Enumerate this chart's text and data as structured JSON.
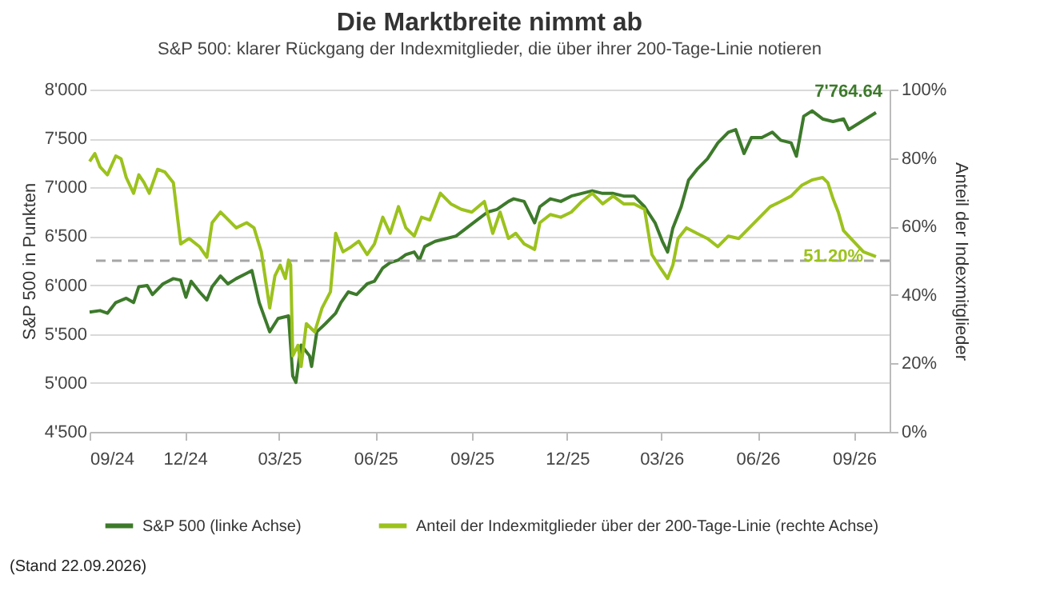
{
  "chart_data": {
    "type": "line",
    "title": "Die Marktbreite nimmt ab",
    "subtitle": "S&P 500: klarer Rückgang der Indexmitglieder, die über ihrer 200-Tage-Linie notieren",
    "ylabel": "S&P 500 in Punkten",
    "y2label": "Anteil der Indexmitglieder",
    "annotations": [
      {
        "text": "7'764.64",
        "x": "2026-09-22",
        "y": 7764.64
      },
      "51.20%",
      "(Stand 22.09.2026)"
    ],
    "series": [
      {
        "name": "S&P 500 (linke Achse)",
        "color": "#3d7a2b",
        "axis": "y",
        "x": [
          "2024-09-01",
          "2024-09-11",
          "2024-09-18",
          "2024-09-26",
          "2024-10-06",
          "2024-10-13",
          "2024-10-18",
          "2024-10-26",
          "2024-10-31",
          "2024-11-10",
          "2024-11-20",
          "2024-11-27",
          "2024-12-02",
          "2024-12-07",
          "2024-12-15",
          "2024-12-22",
          "2024-12-27",
          "2025-01-04",
          "2025-01-11",
          "2025-01-19",
          "2025-01-29",
          "2025-02-03",
          "2025-02-10",
          "2025-02-20",
          "2025-02-28",
          "2025-03-10",
          "2025-03-14",
          "2025-03-17",
          "2025-03-22",
          "2025-03-30",
          "2025-04-01",
          "2025-04-06",
          "2025-04-14",
          "2025-04-24",
          "2025-04-29",
          "2025-05-06",
          "2025-05-14",
          "2025-05-24",
          "2025-05-31",
          "2025-06-08",
          "2025-06-15",
          "2025-06-23",
          "2025-06-30",
          "2025-07-08",
          "2025-07-13",
          "2025-07-18",
          "2025-07-28",
          "2025-08-07",
          "2025-08-17",
          "2025-08-27",
          "2025-09-06",
          "2025-09-16",
          "2025-09-25",
          "2025-10-06",
          "2025-10-11",
          "2025-10-21",
          "2025-10-31",
          "2025-11-05",
          "2025-11-15",
          "2025-11-25",
          "2025-12-05",
          "2025-12-15",
          "2025-12-25",
          "2026-01-04",
          "2026-01-14",
          "2026-01-24",
          "2026-02-03",
          "2026-02-13",
          "2026-02-23",
          "2026-03-02",
          "2026-03-07",
          "2026-03-12",
          "2026-03-20",
          "2026-03-27",
          "2026-04-04",
          "2026-04-14",
          "2026-04-24",
          "2026-05-04",
          "2026-05-11",
          "2026-05-19",
          "2026-05-26",
          "2026-06-05",
          "2026-06-15",
          "2026-06-23",
          "2026-07-03",
          "2026-07-08",
          "2026-07-15",
          "2026-07-23",
          "2026-08-02",
          "2026-08-12",
          "2026-08-22",
          "2026-08-27",
          "2026-09-22"
        ],
        "values": [
          5725,
          5740,
          5713,
          5822,
          5866,
          5822,
          5985,
          5996,
          5904,
          6013,
          6067,
          6051,
          5876,
          6040,
          5931,
          5849,
          5985,
          6094,
          6013,
          6067,
          6121,
          6149,
          5822,
          5523,
          5659,
          5686,
          5071,
          5006,
          5387,
          5278,
          5169,
          5523,
          5604,
          5713,
          5822,
          5931,
          5904,
          6013,
          6040,
          6176,
          6230,
          6257,
          6312,
          6339,
          6257,
          6394,
          6448,
          6475,
          6502,
          6584,
          6666,
          6747,
          6775,
          6856,
          6883,
          6856,
          6638,
          6802,
          6883,
          6856,
          6911,
          6938,
          6965,
          6938,
          6938,
          6911,
          6911,
          6802,
          6638,
          6448,
          6339,
          6584,
          6802,
          7074,
          7183,
          7292,
          7455,
          7564,
          7591,
          7346,
          7509,
          7509,
          7564,
          7482,
          7455,
          7319,
          7727,
          7782,
          7700,
          7673,
          7700,
          7591,
          7764.64
        ]
      },
      {
        "name": "Anteil der Indexmitglieder über der 200-Tage-Linie (rechte Achse)",
        "color": "#9cc21d",
        "axis": "y2",
        "x": [
          "2024-09-01",
          "2024-09-06",
          "2024-09-11",
          "2024-09-18",
          "2024-09-26",
          "2024-10-01",
          "2024-10-06",
          "2024-10-13",
          "2024-10-18",
          "2024-10-23",
          "2024-10-28",
          "2024-11-05",
          "2024-11-12",
          "2024-11-20",
          "2024-11-27",
          "2024-12-05",
          "2024-12-15",
          "2024-12-22",
          "2024-12-27",
          "2025-01-04",
          "2025-01-09",
          "2025-01-19",
          "2025-01-29",
          "2025-02-05",
          "2025-02-12",
          "2025-02-17",
          "2025-02-20",
          "2025-02-25",
          "2025-03-02",
          "2025-03-07",
          "2025-03-10",
          "2025-03-12",
          "2025-03-14",
          "2025-03-19",
          "2025-03-22",
          "2025-03-27",
          "2025-04-04",
          "2025-04-11",
          "2025-04-19",
          "2025-04-24",
          "2025-05-01",
          "2025-05-09",
          "2025-05-16",
          "2025-05-24",
          "2025-05-31",
          "2025-06-08",
          "2025-06-15",
          "2025-06-23",
          "2025-06-30",
          "2025-07-08",
          "2025-07-15",
          "2025-07-23",
          "2025-08-02",
          "2025-08-12",
          "2025-08-22",
          "2025-09-01",
          "2025-09-13",
          "2025-09-21",
          "2025-09-28",
          "2025-10-06",
          "2025-10-13",
          "2025-10-21",
          "2025-10-31",
          "2025-11-05",
          "2025-11-15",
          "2025-11-25",
          "2025-12-05",
          "2025-12-15",
          "2025-12-25",
          "2026-01-04",
          "2026-01-14",
          "2026-01-24",
          "2026-02-03",
          "2026-02-13",
          "2026-02-20",
          "2026-02-28",
          "2026-03-07",
          "2026-03-12",
          "2026-03-17",
          "2026-03-25",
          "2026-04-04",
          "2026-04-14",
          "2026-04-24",
          "2026-05-04",
          "2026-05-14",
          "2026-05-24",
          "2026-06-03",
          "2026-06-13",
          "2026-06-23",
          "2026-07-03",
          "2026-07-13",
          "2026-07-23",
          "2026-08-02",
          "2026-08-07",
          "2026-08-12",
          "2026-08-17",
          "2026-08-22",
          "2026-09-10",
          "2026-09-22"
        ],
        "values": [
          79.0,
          81.3,
          77.4,
          75.1,
          80.6,
          79.8,
          74.3,
          69.7,
          75.1,
          72.8,
          69.7,
          76.7,
          75.9,
          72.8,
          54.9,
          56.5,
          54.1,
          51.0,
          61.1,
          64.2,
          62.7,
          59.6,
          61.1,
          59.6,
          52.6,
          42.5,
          36.2,
          45.6,
          48.7,
          44.8,
          50.2,
          48.7,
          22.2,
          25.3,
          19.1,
          31.6,
          29.2,
          36.2,
          40.9,
          58.0,
          52.6,
          54.1,
          55.7,
          51.8,
          54.9,
          62.7,
          58.0,
          65.8,
          59.6,
          57.2,
          62.7,
          61.9,
          69.7,
          66.6,
          65.0,
          64.2,
          67.3,
          58.0,
          64.2,
          56.5,
          58.0,
          54.9,
          53.3,
          61.1,
          63.5,
          62.7,
          64.2,
          67.3,
          69.7,
          66.6,
          68.9,
          66.6,
          66.6,
          65.0,
          51.8,
          47.9,
          44.8,
          48.7,
          56.5,
          59.6,
          58.0,
          56.5,
          54.1,
          57.2,
          56.5,
          59.6,
          62.7,
          65.8,
          67.3,
          68.9,
          72.0,
          73.6,
          74.3,
          72.8,
          68.1,
          64.2,
          58.8,
          52.6,
          51.2
        ]
      }
    ],
    "xlim": [
      "2024-09-01",
      "2026-10-05"
    ],
    "xticks": [
      {
        "value": "2024-09-01",
        "label": "09/24"
      },
      {
        "value": "2024-12-01",
        "label": "12/24"
      },
      {
        "value": "2025-03-01",
        "label": "03/25"
      },
      {
        "value": "2025-06-01",
        "label": "06/25"
      },
      {
        "value": "2025-09-01",
        "label": "09/25"
      },
      {
        "value": "2025-12-01",
        "label": "12/25"
      },
      {
        "value": "2026-03-01",
        "label": "03/26"
      },
      {
        "value": "2026-06-01",
        "label": "06/26"
      },
      {
        "value": "2026-09-01",
        "label": "09/26"
      }
    ],
    "ylim": [
      4500,
      8000
    ],
    "yticks": [
      {
        "value": 4500,
        "label": "4'500"
      },
      {
        "value": 5000,
        "label": "5'000"
      },
      {
        "value": 5500,
        "label": "5'500"
      },
      {
        "value": 6000,
        "label": "6'000"
      },
      {
        "value": 6500,
        "label": "6'500"
      },
      {
        "value": 7000,
        "label": "7'000"
      },
      {
        "value": 7500,
        "label": "7'500"
      },
      {
        "value": 8000,
        "label": "8'000"
      }
    ],
    "y2lim": [
      0,
      100
    ],
    "y2ticks": [
      {
        "value": 0,
        "label": "0%"
      },
      {
        "value": 20,
        "label": "20%"
      },
      {
        "value": 40,
        "label": "40%"
      },
      {
        "value": 60,
        "label": "60%"
      },
      {
        "value": 80,
        "label": "80%"
      },
      {
        "value": 100,
        "label": "100%"
      }
    ],
    "ref_lines": [
      {
        "axis": "y",
        "value": 6250,
        "color": "#a6a6a6",
        "line_style": "dashed"
      }
    ],
    "grid": "y",
    "legend": "bottom",
    "marker": "none",
    "line_style": "solid"
  }
}
